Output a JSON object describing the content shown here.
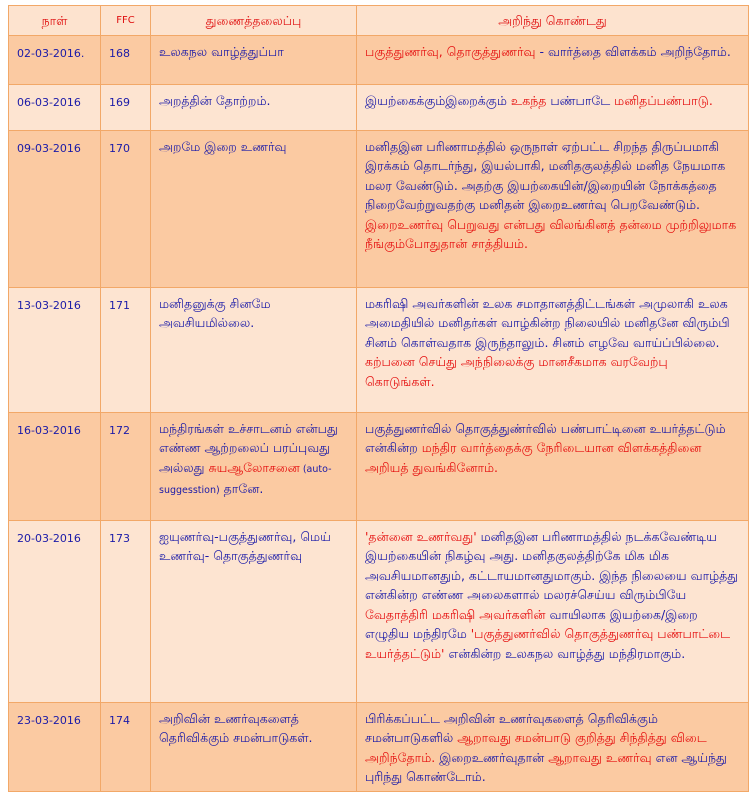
{
  "header": {
    "date": "நாள்",
    "ffc": "FFC",
    "topic": "துணைத்தலைப்பு",
    "learned": "அறிந்து கொண்டது"
  },
  "colors": {
    "blue_text": "#1a1aa8",
    "red_text": "#e51010",
    "row_dark": "#fbcaa2",
    "row_light": "#fde4d1",
    "border": "#f2a868"
  },
  "rows": [
    {
      "date": "02-03-2016.",
      "ffc": "168",
      "topic": [
        {
          "t": "உலகநல வாழ்த்துப்பா",
          "c": "blue"
        }
      ],
      "learned": [
        {
          "t": "பகுத்துணர்வு, தொகுத்துணர்வு",
          "c": "red"
        },
        {
          "t": " - வார்த்தை விளக்கம் அறிந்தோம்.",
          "c": "blue"
        }
      ]
    },
    {
      "date": "06-03-2016",
      "ffc": "169",
      "topic": [
        {
          "t": "அறத்தின் தோற்றம்.",
          "c": "blue"
        }
      ],
      "learned": [
        {
          "t": "இயற்கைக்கும்இறைக்கும் ",
          "c": "blue"
        },
        {
          "t": "உகந்த",
          "c": "red"
        },
        {
          "t": " பண்பாடே ",
          "c": "blue"
        },
        {
          "t": "மனிதப்பண்பாடு.",
          "c": "red"
        }
      ]
    },
    {
      "date": "09-03-2016",
      "ffc": "170",
      "topic": [
        {
          "t": "அறமே இறை உணர்வு",
          "c": "blue"
        }
      ],
      "learned": [
        {
          "t": "மனிதஇன பரிணாமத்தில் ஒருநாள் ஏற்பட்ட சிறந்த திருப்பமாகி இரக்கம் தொடர்ந்து, இயல்பாகி, மனிதகுலத்தில் மனித நேயமாக மலர வேண்டும். அதற்கு இயற்கையின்/இறையின் நோக்கத்தை நிறைவேற்றுவதற்கு மனிதன் இறைஉணர்வு பெறவேண்டும்.  ",
          "c": "blue"
        },
        {
          "t": "இறைஉணர்வு பெறுவது என்பது விலங்கினத் தன்மை முற்றிலுமாக நீங்கும்போதுதான் சாத்தியம்.",
          "c": "red"
        }
      ]
    },
    {
      "date": "13-03-2016",
      "ffc": "171",
      "topic": [
        {
          "t": "மனிதனுக்கு சினமே அவசியமில்லை.",
          "c": "blue"
        }
      ],
      "learned": [
        {
          "t": "மகரிஷி அவர்களின் உலக சமாதானத்திட்டங்கள் அமுலாகி உலக அமைதியில் மனிதர்கள் வாழ்கின்ற நிலையில் மனிதனே விரும்பி  சினம் கொள்வதாக இருந்தாலும். சினம் எழவே வாய்ப்பில்லை.  ",
          "c": "blue"
        },
        {
          "t": "கற்பனை செய்து அந்நிலைக்கு மானசீகமாக வரவேற்பு கொடுங்கள்.",
          "c": "red"
        }
      ]
    },
    {
      "date": "16-03-2016",
      "ffc": "172",
      "topic": [
        {
          "t": "மந்திரங்கள் உச்சாடனம் என்பது எண்ண ஆற்றலைப் பரப்புவது அல்லது ",
          "c": "blue"
        },
        {
          "t": "சுயஆலோசனை",
          "c": "red"
        },
        {
          "t": " (auto-suggesstion)",
          "c": "blue small"
        },
        {
          "t": " தானே.",
          "c": "blue"
        }
      ],
      "learned": [
        {
          "t": "பகுத்துணர்வில் தொகுத்துண்ர்வில் பண்பாட்டினை உயர்த்தட்டும் என்கின்ற ",
          "c": "blue"
        },
        {
          "t": "மந்திர வார்த்தைக்கு நேரிடையான விளக்கத்தினை அறியத் துவங்கினோம்.",
          "c": "red"
        }
      ]
    },
    {
      "date": "20-03-2016",
      "ffc": "173",
      "topic": [
        {
          "t": "ஐயுணர்வு-பகுத்துணர்வு, மெய் உணர்வு- தொகுத்துணர்வு",
          "c": "blue"
        }
      ],
      "learned": [
        {
          "t": "'தன்னை உணர்வது'",
          "c": "red"
        },
        {
          "t": " மனிதஇன பரிணாமத்தில் நடக்கவேண்டிய இயற்கையின் நிகழ்வு அது. மனிதகுலத்திற்கே மிக மிக அவசியமானதும், கட்டாயமானதுமாகும்.  இந்த நிலையை வாழ்த்து என்கின்ற எண்ண அலைகளால் மலரச்செய்ய விரும்பியே ",
          "c": "blue"
        },
        {
          "t": "வேதாத்திரி மகரிஷி அவர்களின்",
          "c": "red"
        },
        {
          "t": " வாயிலாக இயற்கை/இறை எழுதிய மந்திரமே ",
          "c": "blue"
        },
        {
          "t": "'பகுத்துணர்வில் தொகுத்துணர்வு பண்பாட்டை உயர்த்தட்டும்'",
          "c": "red"
        },
        {
          "t": " என்கின்ற உலகநல வாழ்த்து மந்திரமாகும்.",
          "c": "blue"
        }
      ]
    },
    {
      "date": "23-03-2016",
      "ffc": "174",
      "topic": [
        {
          "t": "அறிவின் உணர்வுகளைத் தெரிவிக்கும் சமன்பாடுகள்.",
          "c": "blue"
        }
      ],
      "learned": [
        {
          "t": "பிரிக்கப்பட்ட அறிவின் உணர்வுகளைத் தெரிவிக்கும் சமன்பாடுகளில் ",
          "c": "blue"
        },
        {
          "t": "ஆறாவது சமன்பாடு குறித்து சிந்தித்து விடை அறிந்தோம்.",
          "c": "red"
        },
        {
          "t": " இறைஉணர்வுதான் ",
          "c": "blue"
        },
        {
          "t": "ஆறாவது உணர்வு",
          "c": "red"
        },
        {
          "t": " என ஆய்ந்து புரிந்து கொண்டோம்.",
          "c": "blue"
        }
      ]
    }
  ]
}
